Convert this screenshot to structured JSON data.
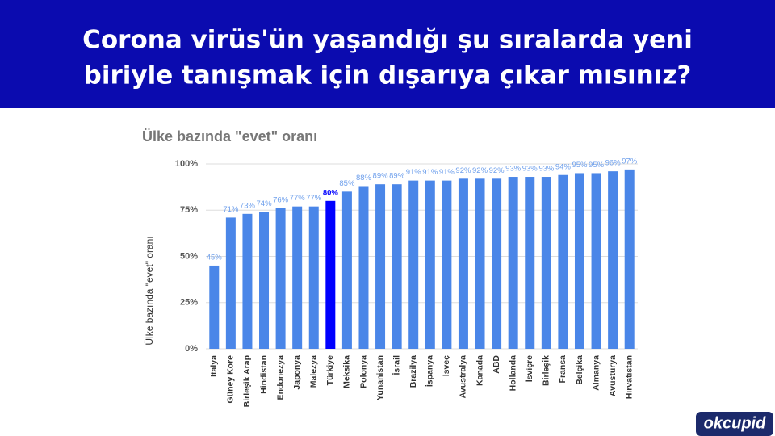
{
  "header": {
    "lines": [
      "Corona virüs'ün yaşandığı şu sıralarda yeni",
      "biriyle tanışmak için dışarıya çıkar mısınız?"
    ]
  },
  "logo": "okcupid",
  "chart_data": {
    "type": "bar",
    "title": "Ülke bazında \"evet\" oranı",
    "y_label": "Ülke bazında \"evet\" oranı",
    "categories": [
      "Italya",
      "Güney Kore",
      "Birleşik Arap",
      "Hindistan",
      "Endonezya",
      "Japonya",
      "Malezya",
      "Türkiye",
      "Meksika",
      "Polonya",
      "Yunanistan",
      "İsrail",
      "Brazilya",
      "İspanya",
      "İsveç",
      "Avustralya",
      "Kanada",
      "ABD",
      "Hollanda",
      "İsviçre",
      "Birleşik",
      "Fransa",
      "Belçika",
      "Almanya",
      "Avusturya",
      "Hırvatistan"
    ],
    "values": [
      45,
      71,
      73,
      74,
      76,
      77,
      77,
      80,
      85,
      88,
      89,
      89,
      91,
      91,
      91,
      92,
      92,
      92,
      93,
      93,
      93,
      94,
      95,
      95,
      96,
      97
    ],
    "value_labels": [
      "45%",
      "71%",
      "73%",
      "74%",
      "76%",
      "77%",
      "77%",
      "80%",
      "85%",
      "88%",
      "89%",
      "89%",
      "91%",
      "91%",
      "91%",
      "92%",
      "92%",
      "92%",
      "93%",
      "93%",
      "93%",
      "94%",
      "95%",
      "95%",
      "96%",
      "97%"
    ],
    "colors": [
      "#4a86e8",
      "#4a86e8",
      "#4a86e8",
      "#4a86e8",
      "#4a86e8",
      "#4a86e8",
      "#4a86e8",
      "#0000ff",
      "#4a86e8",
      "#4a86e8",
      "#4a86e8",
      "#4a86e8",
      "#4a86e8",
      "#4a86e8",
      "#4a86e8",
      "#4a86e8",
      "#4a86e8",
      "#4a86e8",
      "#4a86e8",
      "#4a86e8",
      "#4a86e8",
      "#4a86e8",
      "#4a86e8",
      "#4a86e8",
      "#4a86e8",
      "#4a86e8"
    ],
    "ylim": [
      0,
      100
    ],
    "yticks": [
      {
        "value": 0,
        "label": "0%"
      },
      {
        "value": 25,
        "label": "25%"
      },
      {
        "value": 50,
        "label": "50%"
      },
      {
        "value": 75,
        "label": "75%"
      },
      {
        "value": 100,
        "label": "100%"
      }
    ],
    "grid": true
  }
}
